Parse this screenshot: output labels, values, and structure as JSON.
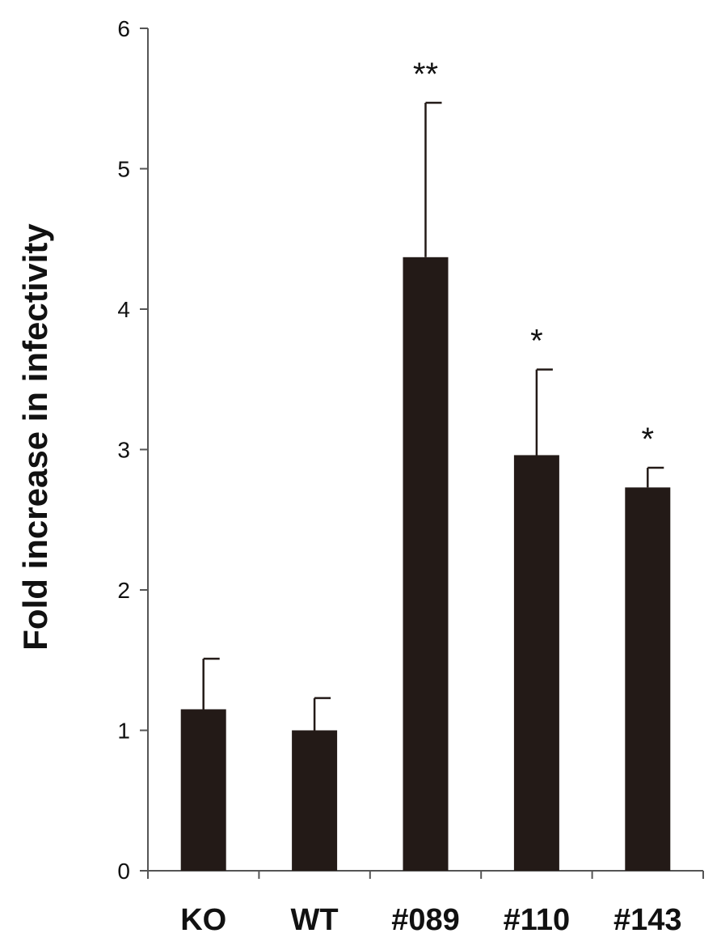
{
  "chart_data": {
    "type": "bar",
    "categories": [
      "KO",
      "WT",
      "#089",
      "#110",
      "#143"
    ],
    "values": [
      1.15,
      1.0,
      4.37,
      2.96,
      2.73
    ],
    "error_upper": [
      1.51,
      1.23,
      5.47,
      3.57,
      2.87
    ],
    "significance": [
      "",
      "",
      "**",
      "*",
      "*"
    ],
    "ylabel": "Fold increase in infectivity",
    "xlabel": "",
    "ylim": [
      0,
      6
    ],
    "yticks": [
      "0",
      "1",
      "2",
      "3",
      "4",
      "5",
      "6"
    ],
    "grid": false,
    "legend": "none",
    "colors": {
      "bar": "#231a17",
      "axis": "#555555",
      "text": "#111111"
    }
  }
}
